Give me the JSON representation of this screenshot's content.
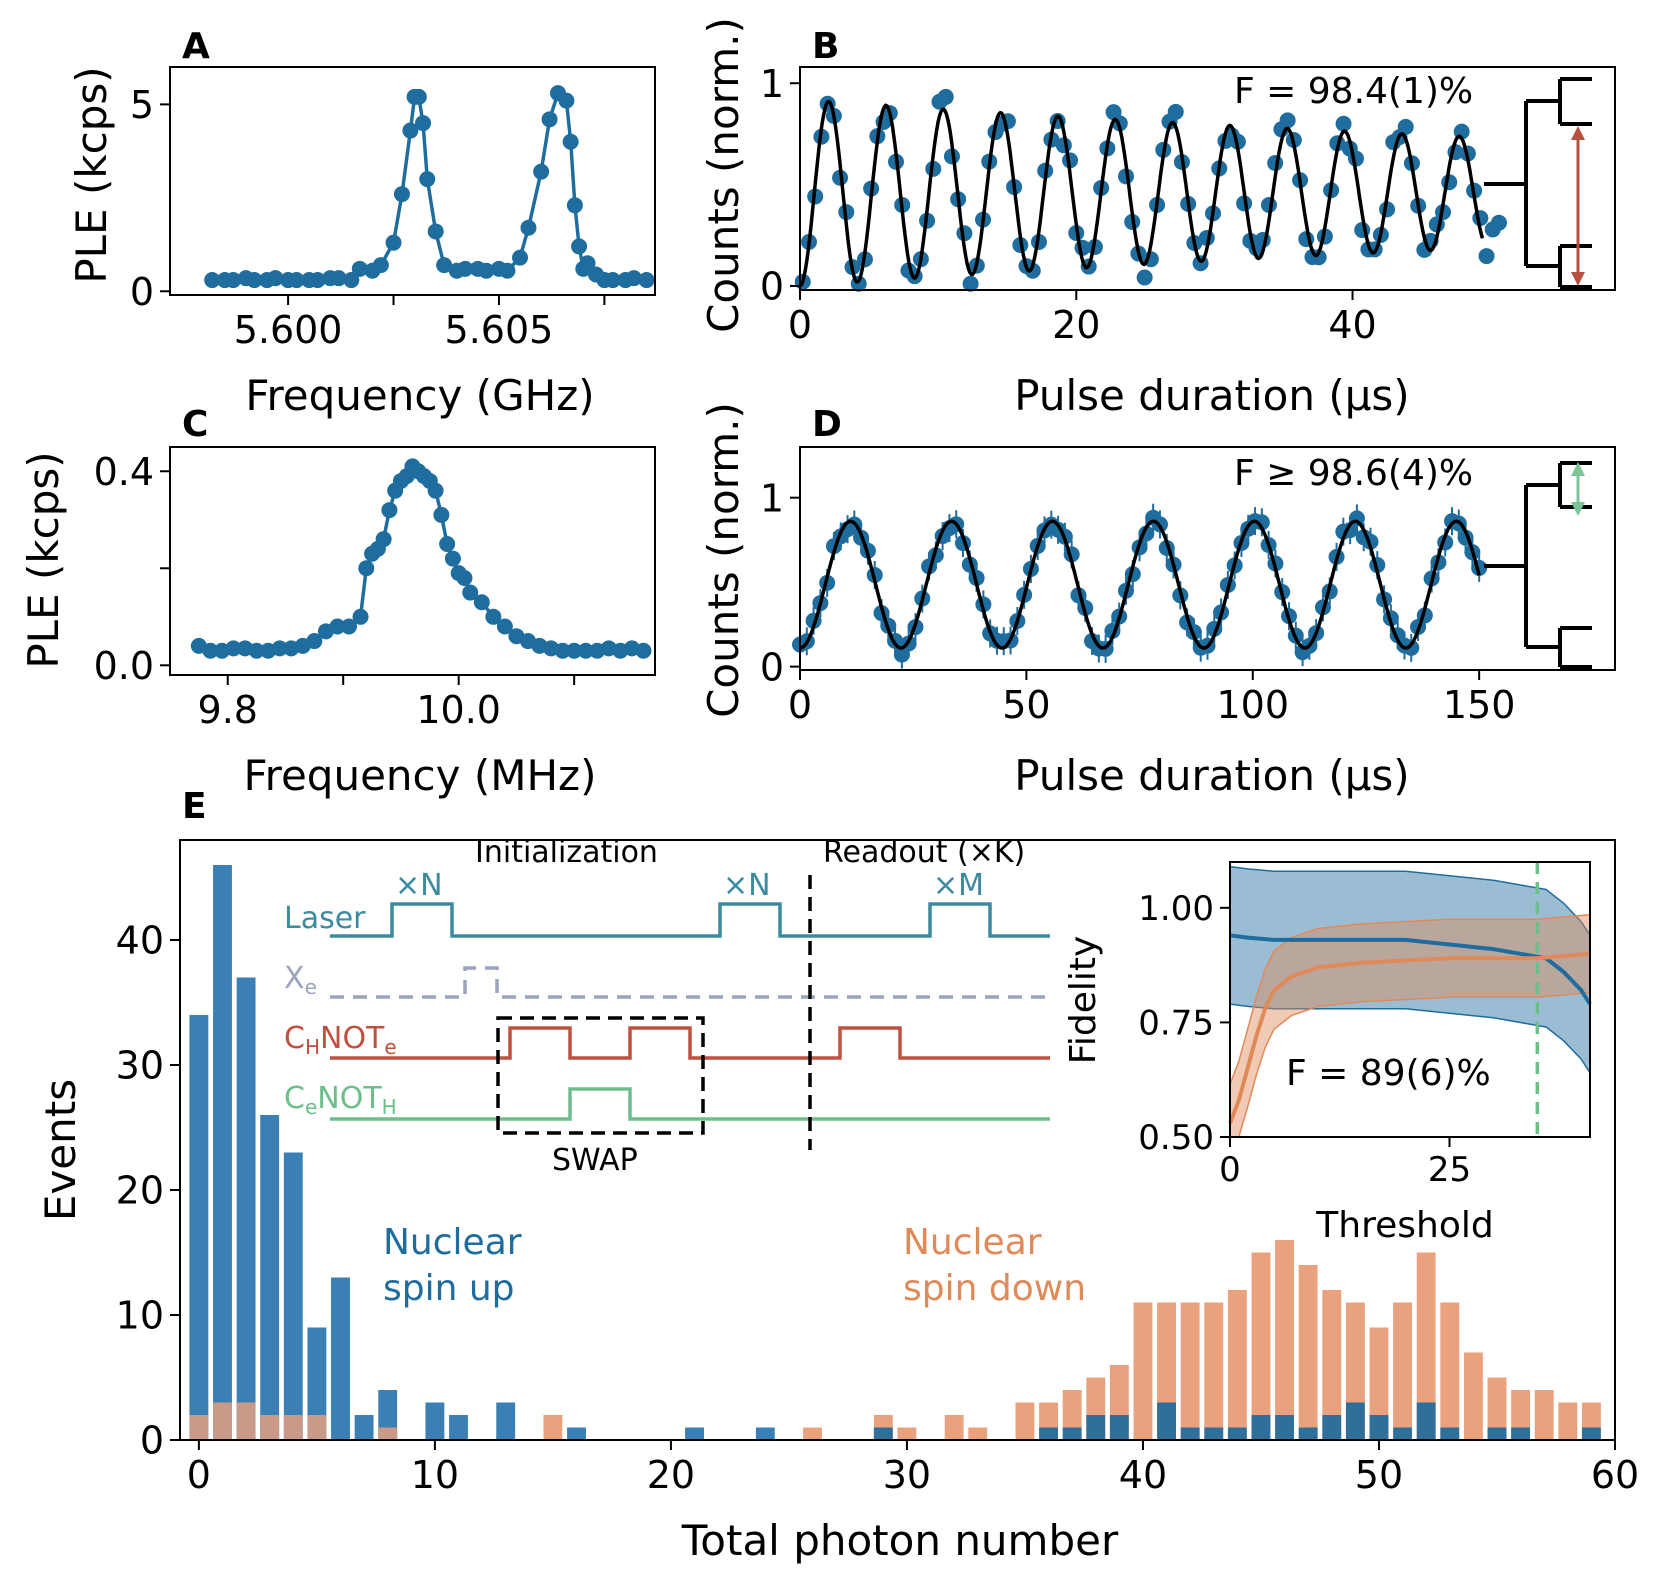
{
  "colors": {
    "blue": "#1f6d9e",
    "blue_bar": "#3a80b4",
    "orange": "#e08a5a",
    "orange_bar": "#e9a27d",
    "teal": "#3c8aa0",
    "grey": "#9aa4bd",
    "red": "#c0503f",
    "green": "#6cbf8a",
    "arrow_red": "#b5513f",
    "arrow_green": "#7cc497",
    "black": "#000000"
  },
  "chart_data": [
    {
      "id": "A",
      "type": "line",
      "label": "A",
      "xlabel": "Frequency (GHz)",
      "ylabel": "PLE (kcps)",
      "xlim": [
        5.5972,
        5.6087
      ],
      "ylim": [
        -0.1,
        6.0
      ],
      "xticks": [
        5.6,
        5.605
      ],
      "xtick_labels": [
        "5.600",
        "5.605"
      ],
      "xminor": [
        5.6025,
        5.6075
      ],
      "yticks": [
        0,
        5
      ],
      "ytick_labels": [
        "0",
        "5"
      ],
      "x": [
        5.5982,
        5.5985,
        5.5987,
        5.599,
        5.5992,
        5.5995,
        5.5997,
        5.6,
        5.6002,
        5.6005,
        5.6007,
        5.601,
        5.6012,
        5.6015,
        5.6017,
        5.602,
        5.6022,
        5.6025,
        5.6027,
        5.6029,
        5.603,
        5.6031,
        5.6032,
        5.6033,
        5.6035,
        5.6037,
        5.604,
        5.6042,
        5.6045,
        5.6047,
        5.605,
        5.6052,
        5.6055,
        5.6057,
        5.606,
        5.6062,
        5.6064,
        5.6066,
        5.6067,
        5.6068,
        5.6069,
        5.607,
        5.6071,
        5.6073,
        5.6075,
        5.6077,
        5.608,
        5.6082,
        5.6085
      ],
      "y": [
        0.3,
        0.3,
        0.3,
        0.35,
        0.3,
        0.3,
        0.35,
        0.3,
        0.3,
        0.3,
        0.3,
        0.35,
        0.35,
        0.3,
        0.6,
        0.55,
        0.7,
        1.3,
        2.6,
        4.3,
        5.2,
        5.2,
        4.5,
        3.0,
        1.6,
        0.7,
        0.55,
        0.6,
        0.6,
        0.55,
        0.6,
        0.55,
        0.9,
        1.7,
        3.2,
        4.6,
        5.3,
        5.1,
        4.0,
        2.3,
        1.2,
        0.6,
        0.75,
        0.45,
        0.3,
        0.3,
        0.3,
        0.35,
        0.3
      ]
    },
    {
      "id": "B",
      "type": "scatter+line",
      "label": "B",
      "xlabel": "Pulse duration (μs)",
      "ylabel": "Counts (norm.)",
      "xlim": [
        0,
        59
      ],
      "ylim": [
        -0.02,
        1.08
      ],
      "xticks": [
        0,
        20,
        40
      ],
      "xtick_labels": [
        "0",
        "20",
        "40"
      ],
      "yticks": [
        0,
        1
      ],
      "ytick_labels": [
        "0",
        "1"
      ],
      "fit": {
        "period": 4.15,
        "amp0": 0.46,
        "decay": 95,
        "offset": 0.46,
        "xmax": 49.5
      },
      "annotation": "F = 98.4(1)%"
    },
    {
      "id": "C",
      "type": "line",
      "label": "C",
      "xlabel": "Frequency (MHz)",
      "ylabel": "PLE (kcps)",
      "xlim": [
        9.75,
        10.17
      ],
      "ylim": [
        -0.02,
        0.45
      ],
      "xticks": [
        9.8,
        10.0
      ],
      "xtick_labels": [
        "9.8",
        "10.0"
      ],
      "xminor": [
        9.9,
        10.1
      ],
      "yticks": [
        0.0,
        0.4
      ],
      "ytick_labels": [
        "0.0",
        "0.4"
      ],
      "yminor": [
        0.2
      ],
      "x": [
        9.775,
        9.785,
        9.795,
        9.805,
        9.815,
        9.825,
        9.835,
        9.845,
        9.855,
        9.865,
        9.875,
        9.885,
        9.895,
        9.905,
        9.915,
        9.92,
        9.925,
        9.93,
        9.935,
        9.94,
        9.945,
        9.95,
        9.955,
        9.96,
        9.965,
        9.97,
        9.975,
        9.98,
        9.985,
        9.99,
        9.995,
        10.0,
        10.005,
        10.01,
        10.02,
        10.03,
        10.04,
        10.05,
        10.06,
        10.07,
        10.08,
        10.09,
        10.1,
        10.11,
        10.12,
        10.13,
        10.14,
        10.15,
        10.16
      ],
      "y": [
        0.04,
        0.03,
        0.03,
        0.035,
        0.035,
        0.03,
        0.03,
        0.035,
        0.035,
        0.04,
        0.05,
        0.07,
        0.08,
        0.08,
        0.1,
        0.2,
        0.23,
        0.24,
        0.26,
        0.32,
        0.36,
        0.38,
        0.39,
        0.41,
        0.4,
        0.39,
        0.38,
        0.36,
        0.31,
        0.25,
        0.22,
        0.19,
        0.18,
        0.15,
        0.13,
        0.1,
        0.08,
        0.06,
        0.05,
        0.04,
        0.035,
        0.03,
        0.03,
        0.03,
        0.03,
        0.035,
        0.03,
        0.035,
        0.03
      ]
    },
    {
      "id": "D",
      "type": "scatter+line",
      "label": "D",
      "xlabel": "Pulse duration (μs)",
      "ylabel": "Counts (norm.)",
      "xlim": [
        0,
        180
      ],
      "ylim": [
        -0.02,
        1.3
      ],
      "xticks": [
        0,
        50,
        100,
        150
      ],
      "xtick_labels": [
        "0",
        "50",
        "100",
        "150"
      ],
      "yticks": [
        0,
        1
      ],
      "ytick_labels": [
        "0",
        "1"
      ],
      "fit": {
        "period": 22.3,
        "amp0": 0.375,
        "offset": 0.485,
        "xmax": 150
      },
      "annotation": "F ≥ 98.6(4)%"
    },
    {
      "id": "E",
      "type": "bar",
      "label": "E",
      "xlabel": "Total photon number",
      "ylabel": "Events",
      "xlim": [
        -0.8,
        60
      ],
      "ylim": [
        0,
        48
      ],
      "xticks": [
        0,
        10,
        20,
        30,
        40,
        50,
        60
      ],
      "xtick_labels": [
        "0",
        "10",
        "20",
        "30",
        "40",
        "50",
        "60"
      ],
      "yticks": [
        0,
        10,
        20,
        30,
        40
      ],
      "ytick_labels": [
        "0",
        "10",
        "20",
        "30",
        "40"
      ],
      "series": [
        {
          "name": "Nuclear spin up",
          "x": [
            0,
            1,
            2,
            3,
            4,
            5,
            6,
            7,
            8,
            10,
            11,
            13,
            16,
            21,
            24,
            29,
            36,
            37,
            38,
            39,
            41,
            42,
            43,
            44,
            45,
            46,
            47,
            48,
            49,
            50,
            51,
            52,
            53,
            55,
            56,
            59
          ],
          "values": [
            34,
            46,
            37,
            26,
            23,
            9,
            13,
            2,
            4,
            3,
            2,
            3,
            1,
            1,
            1,
            1,
            1,
            1,
            2,
            2,
            3,
            1,
            1,
            1,
            2,
            2,
            1,
            2,
            3,
            2,
            1,
            3,
            1,
            1,
            1,
            1
          ]
        },
        {
          "name": "Nuclear spin down",
          "x": [
            0,
            1,
            2,
            3,
            4,
            5,
            8,
            15,
            26,
            29,
            30,
            32,
            33,
            35,
            36,
            37,
            38,
            39,
            40,
            41,
            42,
            43,
            44,
            45,
            46,
            47,
            48,
            49,
            50,
            51,
            52,
            53,
            54,
            55,
            56,
            57,
            58,
            59
          ],
          "values": [
            2,
            3,
            3,
            2,
            2,
            2,
            1,
            2,
            1,
            2,
            1,
            2,
            1,
            3,
            3,
            4,
            5,
            6,
            11,
            11,
            11,
            11,
            12,
            15,
            16,
            14,
            12,
            11,
            9,
            11,
            15,
            11,
            7,
            5,
            4,
            4,
            3,
            3
          ]
        }
      ],
      "legend_up": [
        "Nuclear",
        "spin up"
      ],
      "legend_down": [
        "Nuclear",
        "spin down"
      ]
    },
    {
      "id": "E-inset",
      "type": "line",
      "xlabel": "Threshold",
      "ylabel": "Fidelity",
      "xlim": [
        0,
        41
      ],
      "ylim": [
        0.5,
        1.1
      ],
      "xticks": [
        0,
        25
      ],
      "xtick_labels": [
        "0",
        "25"
      ],
      "yticks": [
        0.5,
        0.75,
        1.0
      ],
      "ytick_labels": [
        "0.50",
        "0.75",
        "1.00"
      ],
      "threshold": 35,
      "annotation": "F = 89(6)%",
      "series": [
        {
          "name": "spin up fidelity",
          "x": [
            0,
            2,
            5,
            10,
            15,
            20,
            25,
            30,
            33,
            36,
            38,
            40,
            41
          ],
          "values": [
            0.94,
            0.935,
            0.93,
            0.93,
            0.93,
            0.93,
            0.92,
            0.91,
            0.9,
            0.89,
            0.86,
            0.82,
            0.79
          ],
          "band": 0.15
        },
        {
          "name": "spin down fidelity",
          "x": [
            0,
            1,
            2,
            3,
            4,
            5,
            7,
            10,
            15,
            20,
            25,
            30,
            35,
            38,
            41
          ],
          "values": [
            0.53,
            0.58,
            0.65,
            0.72,
            0.78,
            0.82,
            0.85,
            0.87,
            0.88,
            0.885,
            0.89,
            0.89,
            0.89,
            0.895,
            0.9
          ],
          "band": 0.085
        }
      ]
    }
  ],
  "pulse_sequence": {
    "section_initialization": "Initialization",
    "section_readout": "Readout (×K)",
    "swap_label": "SWAP",
    "rows": [
      {
        "name": "Laser"
      },
      {
        "name": "X",
        "sub": "e"
      },
      {
        "name": "C",
        "sub": "H",
        "name2": "NOT",
        "sub2": "e"
      },
      {
        "name": "C",
        "sub": "e",
        "name2": "NOT",
        "sub2": "H"
      }
    ],
    "repeat_labels": [
      "×N",
      "×N",
      "×M"
    ]
  }
}
